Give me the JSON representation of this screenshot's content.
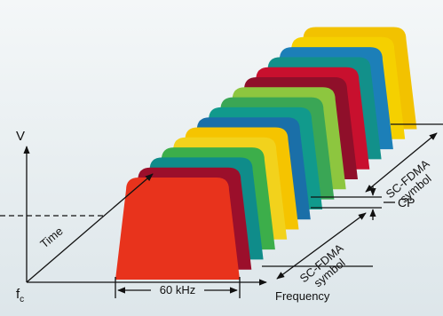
{
  "axes": {
    "v": "V",
    "time": "Time",
    "f": "f",
    "f_sub": "c",
    "frequency": "Frequency"
  },
  "bandwidth": "60 kHz",
  "cp": "CP",
  "symbol_lower": {
    "line1": "SC-FDMA",
    "line2": "symbol"
  },
  "symbol_upper": {
    "line1": "SC-FDMA",
    "line2": "symbol"
  }
}
